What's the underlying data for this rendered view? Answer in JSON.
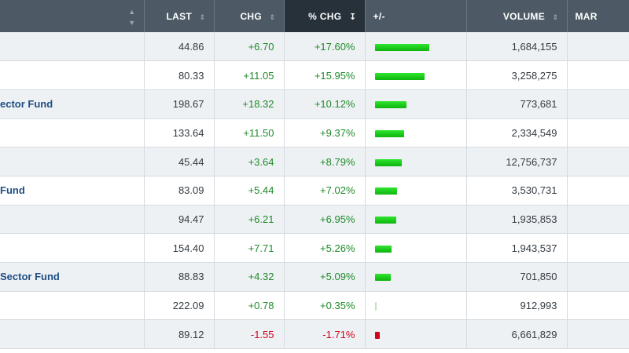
{
  "columns": {
    "name": "",
    "last": "LAST",
    "chg": "CHG",
    "pct_chg": "% CHG",
    "bar": "+/-",
    "volume": "VOLUME",
    "market": "MAR"
  },
  "colors": {
    "up": "#1f8a2a",
    "down": "#d0021b",
    "bar_up": "#22cc22",
    "bar_down": "#d0021b",
    "header_bg": "#4d5a66",
    "header_active_bg": "#27313a"
  },
  "rows": [
    {
      "name": "",
      "last": "44.86",
      "chg": "+6.70",
      "pct": "+17.60%",
      "pct_value": 17.6,
      "volume": "1,684,155",
      "dir": "up"
    },
    {
      "name": "",
      "last": "80.33",
      "chg": "+11.05",
      "pct": "+15.95%",
      "pct_value": 15.95,
      "volume": "3,258,275",
      "dir": "up"
    },
    {
      "name": "ector Fund",
      "last": "198.67",
      "chg": "+18.32",
      "pct": "+10.12%",
      "pct_value": 10.12,
      "volume": "773,681",
      "dir": "up"
    },
    {
      "name": "",
      "last": "133.64",
      "chg": "+11.50",
      "pct": "+9.37%",
      "pct_value": 9.37,
      "volume": "2,334,549",
      "dir": "up"
    },
    {
      "name": "",
      "last": "45.44",
      "chg": "+3.64",
      "pct": "+8.79%",
      "pct_value": 8.79,
      "volume": "12,756,737",
      "dir": "up"
    },
    {
      "name": "Fund",
      "last": "83.09",
      "chg": "+5.44",
      "pct": "+7.02%",
      "pct_value": 7.02,
      "volume": "3,530,731",
      "dir": "up"
    },
    {
      "name": "",
      "last": "94.47",
      "chg": "+6.21",
      "pct": "+6.95%",
      "pct_value": 6.95,
      "volume": "1,935,853",
      "dir": "up"
    },
    {
      "name": "",
      "last": "154.40",
      "chg": "+7.71",
      "pct": "+5.26%",
      "pct_value": 5.26,
      "volume": "1,943,537",
      "dir": "up"
    },
    {
      "name": "Sector Fund",
      "last": "88.83",
      "chg": "+4.32",
      "pct": "+5.09%",
      "pct_value": 5.09,
      "volume": "701,850",
      "dir": "up"
    },
    {
      "name": "",
      "last": "222.09",
      "chg": "+0.78",
      "pct": "+0.35%",
      "pct_value": 0.35,
      "volume": "912,993",
      "dir": "up"
    },
    {
      "name": "",
      "last": "89.12",
      "chg": "-1.55",
      "pct": "-1.71%",
      "pct_value": -1.71,
      "volume": "6,661,829",
      "dir": "down"
    }
  ]
}
